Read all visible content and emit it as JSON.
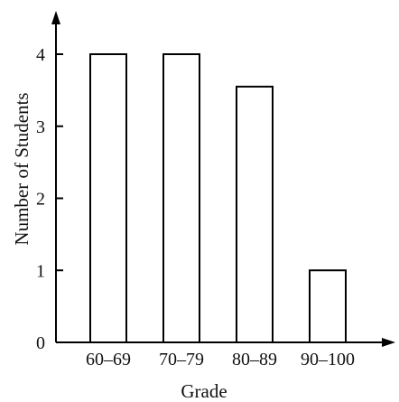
{
  "chart_data": {
    "type": "bar",
    "categories": [
      "60–69",
      "70–79",
      "80–89",
      "90–100"
    ],
    "values": [
      4,
      4,
      3.55,
      1
    ],
    "xlabel": "Grade",
    "ylabel": "Number of Students",
    "yticks": [
      0,
      1,
      2,
      3,
      4
    ],
    "ylim": [
      0,
      4.5
    ],
    "grid": false,
    "colors": {
      "bar_fill": "#ffffff",
      "bar_stroke": "#000000",
      "axis": "#000000"
    }
  }
}
